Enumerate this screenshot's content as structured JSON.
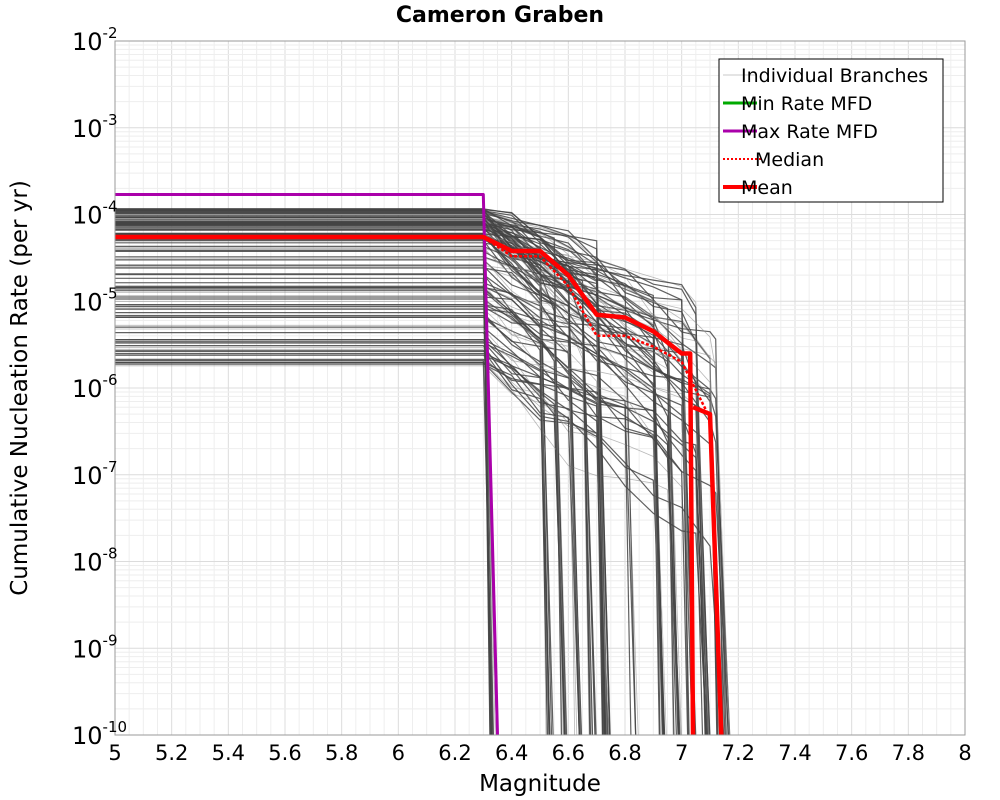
{
  "chart_data": {
    "type": "line",
    "title": "Cameron Graben",
    "xlabel": "Magnitude",
    "ylabel": "Cumulative Nucleation Rate (per yr)",
    "xlim": [
      5,
      8
    ],
    "ylim": [
      1e-10,
      0.01
    ],
    "yscale": "log",
    "grid": true,
    "legend_position": "top-right",
    "x_ticks": [
      "5",
      "5.2",
      "5.4",
      "5.6",
      "5.8",
      "6",
      "6.2",
      "6.4",
      "6.6",
      "6.8",
      "7",
      "7.2",
      "7.4",
      "7.6",
      "7.8",
      "8"
    ],
    "y_ticks": [
      {
        "base": "10",
        "exp": "-2"
      },
      {
        "base": "10",
        "exp": "-3"
      },
      {
        "base": "10",
        "exp": "-4"
      },
      {
        "base": "10",
        "exp": "-5"
      },
      {
        "base": "10",
        "exp": "-6"
      },
      {
        "base": "10",
        "exp": "-7"
      },
      {
        "base": "10",
        "exp": "-8"
      },
      {
        "base": "10",
        "exp": "-9"
      },
      {
        "base": "10",
        "exp": "-10"
      }
    ],
    "legend": [
      {
        "label": "Individual Branches",
        "color": "#c8c8c8",
        "style": "solid",
        "width": 1
      },
      {
        "label": "Min Rate MFD",
        "color": "#00aa00",
        "style": "solid",
        "width": 3
      },
      {
        "label": "Max Rate MFD",
        "color": "#aa00aa",
        "style": "solid",
        "width": 3
      },
      {
        "label": "Median",
        "color": "#ff0000",
        "style": "dotted",
        "width": 2
      },
      {
        "label": "Mean",
        "color": "#ff0000",
        "style": "solid",
        "width": 4
      }
    ],
    "series": [
      {
        "name": "Max Rate MFD",
        "color": "#aa00aa",
        "x": [
          5.0,
          6.3,
          6.35
        ],
        "y": [
          0.00017,
          0.00017,
          1e-10
        ]
      },
      {
        "name": "Median",
        "color": "#ff0000",
        "x": [
          5.0,
          6.3,
          6.4,
          6.5,
          6.6,
          6.7,
          6.8,
          6.9,
          7.0,
          7.1,
          7.14
        ],
        "y": [
          5.5e-05,
          5.5e-05,
          3.3e-05,
          3.3e-05,
          1.5e-05,
          4e-06,
          4e-06,
          3e-06,
          2e-06,
          4.5e-07,
          1e-10
        ]
      },
      {
        "name": "Mean",
        "color": "#ff0000",
        "x": [
          5.0,
          6.3,
          6.4,
          6.5,
          6.6,
          6.7,
          6.8,
          6.9,
          7.0,
          7.03,
          7.04
        ],
        "y": [
          5.5e-05,
          5.5e-05,
          3.8e-05,
          3.8e-05,
          2e-05,
          7e-06,
          6.5e-06,
          4.5e-06,
          2.5e-06,
          2.5e-06,
          1e-10
        ],
        "x2": [
          7.04,
          7.1,
          7.14
        ],
        "y2": [
          6e-07,
          5e-07,
          1e-10
        ]
      }
    ],
    "branch_bands": [
      {
        "level_min": 1.8e-06,
        "level_max": 0.00012,
        "drop_start": 6.3
      }
    ]
  }
}
